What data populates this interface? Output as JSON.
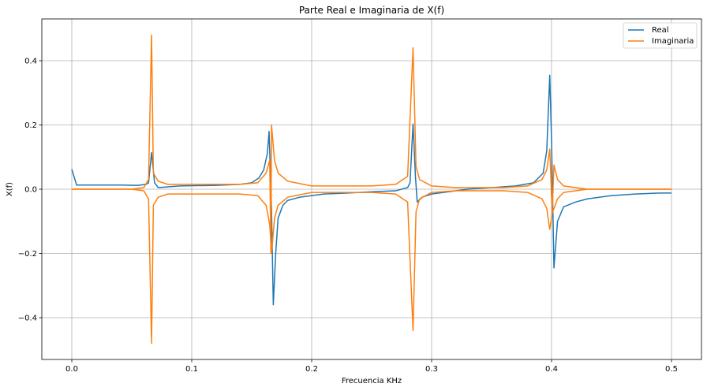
{
  "chart_data": {
    "type": "line",
    "title": "Parte Real e Imaginaria de X(f)",
    "xlabel": "Frecuencia KHz",
    "ylabel": "X(f)",
    "xlim": [
      -0.025,
      0.525
    ],
    "ylim": [
      -0.53,
      0.53
    ],
    "xticks": [
      0.0,
      0.1,
      0.2,
      0.3,
      0.4,
      0.5
    ],
    "xtick_labels": [
      "0.0",
      "0.1",
      "0.2",
      "0.3",
      "0.4",
      "0.5"
    ],
    "yticks": [
      0.4,
      0.2,
      0.0,
      -0.2,
      -0.4
    ],
    "ytick_labels": [
      "0.4",
      "0.2",
      "0.0",
      "−0.2",
      "−0.4"
    ],
    "grid": true,
    "legend_position": "top-right",
    "series": [
      {
        "name": "Real",
        "color": "#1f77b4",
        "points": [
          [
            0.0,
            0.062
          ],
          [
            0.004,
            0.013
          ],
          [
            0.02,
            0.013
          ],
          [
            0.04,
            0.013
          ],
          [
            0.055,
            0.012
          ],
          [
            0.062,
            0.015
          ],
          [
            0.064,
            0.02
          ],
          [
            0.0665,
            0.114
          ],
          [
            0.069,
            0.02
          ],
          [
            0.072,
            0.005
          ],
          [
            0.09,
            0.01
          ],
          [
            0.12,
            0.012
          ],
          [
            0.14,
            0.015
          ],
          [
            0.15,
            0.02
          ],
          [
            0.156,
            0.035
          ],
          [
            0.16,
            0.06
          ],
          [
            0.163,
            0.11
          ],
          [
            0.1645,
            0.18
          ],
          [
            0.1665,
            -0.06
          ],
          [
            0.168,
            -0.36
          ],
          [
            0.17,
            -0.2
          ],
          [
            0.172,
            -0.09
          ],
          [
            0.176,
            -0.05
          ],
          [
            0.18,
            -0.035
          ],
          [
            0.19,
            -0.025
          ],
          [
            0.21,
            -0.015
          ],
          [
            0.23,
            -0.012
          ],
          [
            0.25,
            -0.008
          ],
          [
            0.27,
            -0.005
          ],
          [
            0.28,
            0.005
          ],
          [
            0.282,
            0.02
          ],
          [
            0.2845,
            0.203
          ],
          [
            0.2865,
            0.04
          ],
          [
            0.288,
            -0.04
          ],
          [
            0.292,
            -0.025
          ],
          [
            0.3,
            -0.015
          ],
          [
            0.31,
            -0.01
          ],
          [
            0.33,
            0.0
          ],
          [
            0.35,
            0.005
          ],
          [
            0.37,
            0.01
          ],
          [
            0.385,
            0.02
          ],
          [
            0.393,
            0.05
          ],
          [
            0.396,
            0.12
          ],
          [
            0.3985,
            0.355
          ],
          [
            0.4,
            0.15
          ],
          [
            0.402,
            -0.245
          ],
          [
            0.405,
            -0.1
          ],
          [
            0.41,
            -0.055
          ],
          [
            0.42,
            -0.04
          ],
          [
            0.43,
            -0.03
          ],
          [
            0.45,
            -0.02
          ],
          [
            0.47,
            -0.015
          ],
          [
            0.49,
            -0.012
          ],
          [
            0.5,
            -0.012
          ]
        ]
      },
      {
        "name": "Imaginaria",
        "color": "#ff7f0e",
        "points": [
          [
            0.0,
            0.0
          ],
          [
            0.05,
            0.0
          ],
          [
            0.06,
            0.005
          ],
          [
            0.064,
            0.03
          ],
          [
            0.0665,
            0.48
          ],
          [
            0.068,
            0.05
          ],
          [
            0.072,
            0.025
          ],
          [
            0.08,
            0.015
          ],
          [
            0.1,
            0.015
          ],
          [
            0.14,
            0.015
          ],
          [
            0.155,
            0.02
          ],
          [
            0.162,
            0.05
          ],
          [
            0.165,
            0.09
          ],
          [
            0.166,
            -0.2
          ],
          [
            0.1665,
            0.2
          ],
          [
            0.169,
            0.09
          ],
          [
            0.172,
            0.05
          ],
          [
            0.18,
            0.025
          ],
          [
            0.2,
            0.01
          ],
          [
            0.25,
            0.01
          ],
          [
            0.27,
            0.015
          ],
          [
            0.28,
            0.04
          ],
          [
            0.2845,
            0.44
          ],
          [
            0.287,
            0.07
          ],
          [
            0.29,
            0.03
          ],
          [
            0.3,
            0.01
          ],
          [
            0.32,
            0.005
          ],
          [
            0.36,
            0.005
          ],
          [
            0.38,
            0.01
          ],
          [
            0.392,
            0.03
          ],
          [
            0.396,
            0.06
          ],
          [
            0.3985,
            0.125
          ],
          [
            0.4005,
            -0.075
          ],
          [
            0.402,
            0.075
          ],
          [
            0.405,
            0.03
          ],
          [
            0.41,
            0.01
          ],
          [
            0.42,
            0.005
          ],
          [
            0.43,
            0.0
          ],
          [
            0.5,
            0.0
          ]
        ]
      },
      {
        "name": "",
        "color": "#ff7f0e",
        "points": [
          [
            0.0,
            0.0
          ],
          [
            0.05,
            0.0
          ],
          [
            0.06,
            -0.005
          ],
          [
            0.064,
            -0.03
          ],
          [
            0.0665,
            -0.48
          ],
          [
            0.068,
            -0.05
          ],
          [
            0.072,
            -0.025
          ],
          [
            0.08,
            -0.015
          ],
          [
            0.1,
            -0.015
          ],
          [
            0.14,
            -0.015
          ],
          [
            0.155,
            -0.02
          ],
          [
            0.162,
            -0.05
          ],
          [
            0.165,
            -0.11
          ],
          [
            0.1665,
            -0.2
          ],
          [
            0.169,
            -0.09
          ],
          [
            0.172,
            -0.05
          ],
          [
            0.18,
            -0.025
          ],
          [
            0.2,
            -0.01
          ],
          [
            0.25,
            -0.01
          ],
          [
            0.27,
            -0.015
          ],
          [
            0.28,
            -0.04
          ],
          [
            0.2845,
            -0.44
          ],
          [
            0.287,
            -0.07
          ],
          [
            0.29,
            -0.03
          ],
          [
            0.3,
            -0.01
          ],
          [
            0.32,
            -0.005
          ],
          [
            0.36,
            -0.005
          ],
          [
            0.38,
            -0.01
          ],
          [
            0.392,
            -0.03
          ],
          [
            0.396,
            -0.06
          ],
          [
            0.3985,
            -0.125
          ],
          [
            0.4005,
            -0.075
          ],
          [
            0.405,
            -0.03
          ],
          [
            0.41,
            -0.01
          ],
          [
            0.42,
            -0.005
          ],
          [
            0.43,
            0.0
          ],
          [
            0.5,
            0.0
          ]
        ]
      }
    ]
  }
}
